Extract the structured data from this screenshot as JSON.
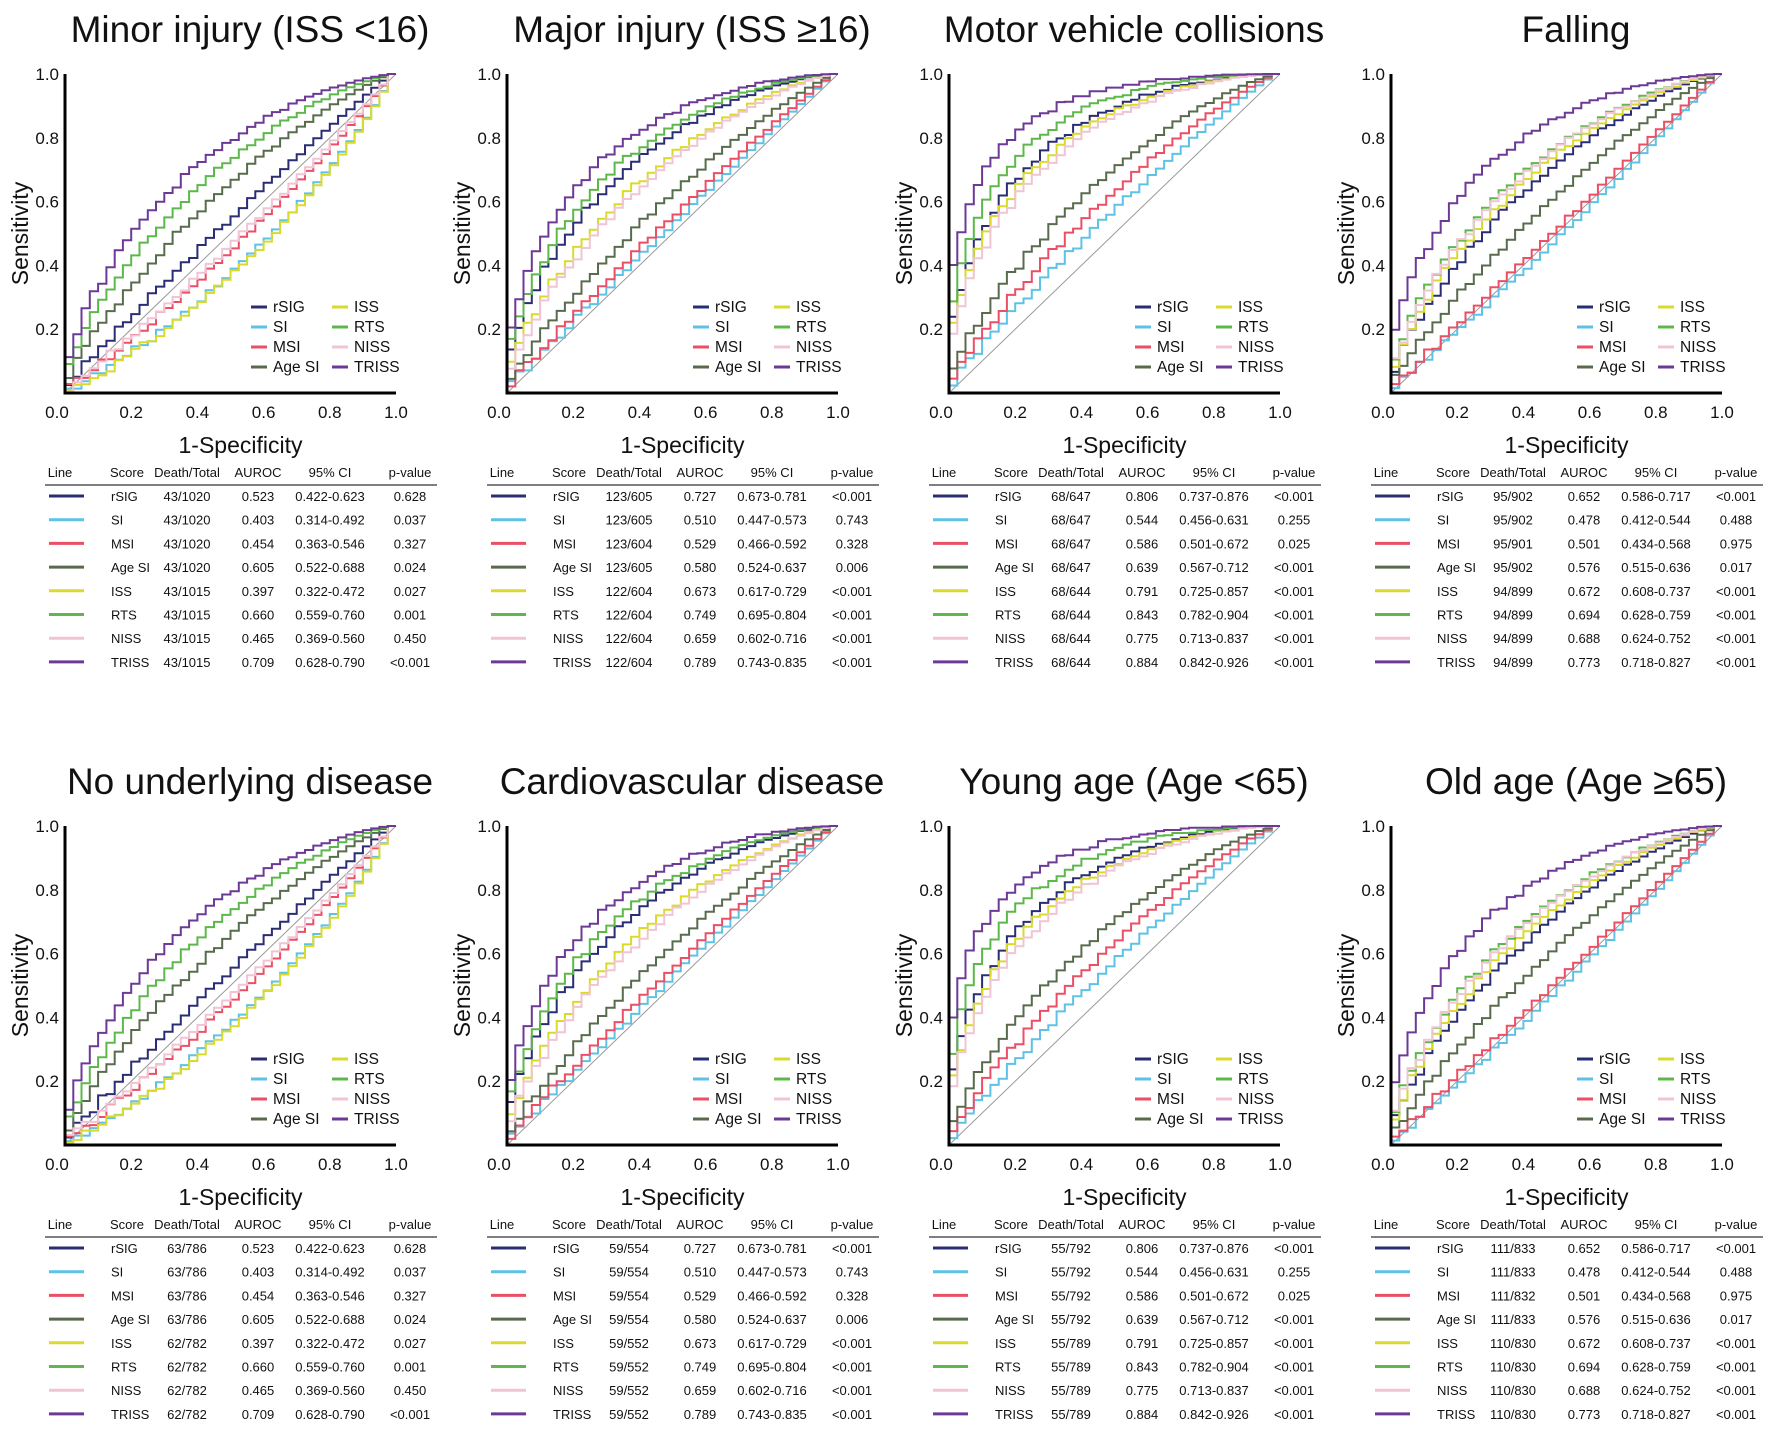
{
  "table_headers": [
    "Line",
    "Score",
    "Death/Total",
    "AUROC",
    "95% CI",
    "p-value"
  ],
  "colors": {
    "rSIG": "#2a2c74",
    "SI": "#5ec2e6",
    "MSI": "#ea4f66",
    "Age SI": "#586b4c",
    "ISS": "#d9da2c",
    "RTS": "#5cb84a",
    "NISS": "#f1c4d3",
    "TRISS": "#6c3a96"
  },
  "chart_data": [
    {
      "type": "line",
      "title": "Minor injury (ISS <16)",
      "xlabel": "1-Specificity",
      "ylabel": "Sensitivity",
      "xlim": [
        0,
        1
      ],
      "ylim": [
        0,
        1
      ],
      "ticks": [
        "0.0",
        "0.2",
        "0.4",
        "0.6",
        "0.8",
        "1.0"
      ],
      "legend": "bottom-right",
      "series": [
        {
          "name": "rSIG",
          "death_total": "43/1020",
          "auroc": "0.523",
          "ci": "0.422-0.623",
          "p": "0.628"
        },
        {
          "name": "SI",
          "death_total": "43/1020",
          "auroc": "0.403",
          "ci": "0.314-0.492",
          "p": "0.037"
        },
        {
          "name": "MSI",
          "death_total": "43/1020",
          "auroc": "0.454",
          "ci": "0.363-0.546",
          "p": "0.327"
        },
        {
          "name": "Age SI",
          "death_total": "43/1020",
          "auroc": "0.605",
          "ci": "0.522-0.688",
          "p": "0.024"
        },
        {
          "name": "ISS",
          "death_total": "43/1015",
          "auroc": "0.397",
          "ci": "0.322-0.472",
          "p": "0.027"
        },
        {
          "name": "RTS",
          "death_total": "43/1015",
          "auroc": "0.660",
          "ci": "0.559-0.760",
          "p": "0.001"
        },
        {
          "name": "NISS",
          "death_total": "43/1015",
          "auroc": "0.465",
          "ci": "0.369-0.560",
          "p": "0.450"
        },
        {
          "name": "TRISS",
          "death_total": "43/1015",
          "auroc": "0.709",
          "ci": "0.628-0.790",
          "p": "<0.001"
        }
      ]
    },
    {
      "type": "line",
      "title": "Major injury (ISS ≥16)",
      "xlabel": "1-Specificity",
      "ylabel": "Sensitivity",
      "xlim": [
        0,
        1
      ],
      "ylim": [
        0,
        1
      ],
      "ticks": [
        "0.0",
        "0.2",
        "0.4",
        "0.6",
        "0.8",
        "1.0"
      ],
      "legend": "bottom-right",
      "series": [
        {
          "name": "rSIG",
          "death_total": "123/605",
          "auroc": "0.727",
          "ci": "0.673-0.781",
          "p": "<0.001"
        },
        {
          "name": "SI",
          "death_total": "123/605",
          "auroc": "0.510",
          "ci": "0.447-0.573",
          "p": "0.743"
        },
        {
          "name": "MSI",
          "death_total": "123/604",
          "auroc": "0.529",
          "ci": "0.466-0.592",
          "p": "0.328"
        },
        {
          "name": "Age SI",
          "death_total": "123/605",
          "auroc": "0.580",
          "ci": "0.524-0.637",
          "p": "0.006"
        },
        {
          "name": "ISS",
          "death_total": "122/604",
          "auroc": "0.673",
          "ci": "0.617-0.729",
          "p": "<0.001"
        },
        {
          "name": "RTS",
          "death_total": "122/604",
          "auroc": "0.749",
          "ci": "0.695-0.804",
          "p": "<0.001"
        },
        {
          "name": "NISS",
          "death_total": "122/604",
          "auroc": "0.659",
          "ci": "0.602-0.716",
          "p": "<0.001"
        },
        {
          "name": "TRISS",
          "death_total": "122/604",
          "auroc": "0.789",
          "ci": "0.743-0.835",
          "p": "<0.001"
        }
      ]
    },
    {
      "type": "line",
      "title": "Motor vehicle collisions",
      "xlabel": "1-Specificity",
      "ylabel": "Sensitivity",
      "xlim": [
        0,
        1
      ],
      "ylim": [
        0,
        1
      ],
      "ticks": [
        "0.0",
        "0.2",
        "0.4",
        "0.6",
        "0.8",
        "1.0"
      ],
      "legend": "bottom-right",
      "series": [
        {
          "name": "rSIG",
          "death_total": "68/647",
          "auroc": "0.806",
          "ci": "0.737-0.876",
          "p": "<0.001"
        },
        {
          "name": "SI",
          "death_total": "68/647",
          "auroc": "0.544",
          "ci": "0.456-0.631",
          "p": "0.255"
        },
        {
          "name": "MSI",
          "death_total": "68/647",
          "auroc": "0.586",
          "ci": "0.501-0.672",
          "p": "0.025"
        },
        {
          "name": "Age SI",
          "death_total": "68/647",
          "auroc": "0.639",
          "ci": "0.567-0.712",
          "p": "<0.001"
        },
        {
          "name": "ISS",
          "death_total": "68/644",
          "auroc": "0.791",
          "ci": "0.725-0.857",
          "p": "<0.001"
        },
        {
          "name": "RTS",
          "death_total": "68/644",
          "auroc": "0.843",
          "ci": "0.782-0.904",
          "p": "<0.001"
        },
        {
          "name": "NISS",
          "death_total": "68/644",
          "auroc": "0.775",
          "ci": "0.713-0.837",
          "p": "<0.001"
        },
        {
          "name": "TRISS",
          "death_total": "68/644",
          "auroc": "0.884",
          "ci": "0.842-0.926",
          "p": "<0.001"
        }
      ]
    },
    {
      "type": "line",
      "title": "Falling",
      "xlabel": "1-Specificity",
      "ylabel": "Sensitivity",
      "xlim": [
        0,
        1
      ],
      "ylim": [
        0,
        1
      ],
      "ticks": [
        "0.0",
        "0.2",
        "0.4",
        "0.6",
        "0.8",
        "1.0"
      ],
      "legend": "bottom-right",
      "series": [
        {
          "name": "rSIG",
          "death_total": "95/902",
          "auroc": "0.652",
          "ci": "0.586-0.717",
          "p": "<0.001"
        },
        {
          "name": "SI",
          "death_total": "95/902",
          "auroc": "0.478",
          "ci": "0.412-0.544",
          "p": "0.488"
        },
        {
          "name": "MSI",
          "death_total": "95/901",
          "auroc": "0.501",
          "ci": "0.434-0.568",
          "p": "0.975"
        },
        {
          "name": "Age SI",
          "death_total": "95/902",
          "auroc": "0.576",
          "ci": "0.515-0.636",
          "p": "0.017"
        },
        {
          "name": "ISS",
          "death_total": "94/899",
          "auroc": "0.672",
          "ci": "0.608-0.737",
          "p": "<0.001"
        },
        {
          "name": "RTS",
          "death_total": "94/899",
          "auroc": "0.694",
          "ci": "0.628-0.759",
          "p": "<0.001"
        },
        {
          "name": "NISS",
          "death_total": "94/899",
          "auroc": "0.688",
          "ci": "0.624-0.752",
          "p": "<0.001"
        },
        {
          "name": "TRISS",
          "death_total": "94/899",
          "auroc": "0.773",
          "ci": "0.718-0.827",
          "p": "<0.001"
        }
      ]
    },
    {
      "type": "line",
      "title": "No underlying disease",
      "xlabel": "1-Specificity",
      "ylabel": "Sensitivity",
      "xlim": [
        0,
        1
      ],
      "ylim": [
        0,
        1
      ],
      "ticks": [
        "0.0",
        "0.2",
        "0.4",
        "0.6",
        "0.8",
        "1.0"
      ],
      "legend": "bottom-right",
      "series": [
        {
          "name": "rSIG",
          "death_total": "63/786",
          "auroc": "0.523",
          "ci": "0.422-0.623",
          "p": "0.628"
        },
        {
          "name": "SI",
          "death_total": "63/786",
          "auroc": "0.403",
          "ci": "0.314-0.492",
          "p": "0.037"
        },
        {
          "name": "MSI",
          "death_total": "63/786",
          "auroc": "0.454",
          "ci": "0.363-0.546",
          "p": "0.327"
        },
        {
          "name": "Age SI",
          "death_total": "63/786",
          "auroc": "0.605",
          "ci": "0.522-0.688",
          "p": "0.024"
        },
        {
          "name": "ISS",
          "death_total": "62/782",
          "auroc": "0.397",
          "ci": "0.322-0.472",
          "p": "0.027"
        },
        {
          "name": "RTS",
          "death_total": "62/782",
          "auroc": "0.660",
          "ci": "0.559-0.760",
          "p": "0.001"
        },
        {
          "name": "NISS",
          "death_total": "62/782",
          "auroc": "0.465",
          "ci": "0.369-0.560",
          "p": "0.450"
        },
        {
          "name": "TRISS",
          "death_total": "62/782",
          "auroc": "0.709",
          "ci": "0.628-0.790",
          "p": "<0.001"
        }
      ]
    },
    {
      "type": "line",
      "title": "Cardiovascular disease",
      "xlabel": "1-Specificity",
      "ylabel": "Sensitivity",
      "xlim": [
        0,
        1
      ],
      "ylim": [
        0,
        1
      ],
      "ticks": [
        "0.0",
        "0.2",
        "0.4",
        "0.6",
        "0.8",
        "1.0"
      ],
      "legend": "bottom-right",
      "series": [
        {
          "name": "rSIG",
          "death_total": "59/554",
          "auroc": "0.727",
          "ci": "0.673-0.781",
          "p": "<0.001"
        },
        {
          "name": "SI",
          "death_total": "59/554",
          "auroc": "0.510",
          "ci": "0.447-0.573",
          "p": "0.743"
        },
        {
          "name": "MSI",
          "death_total": "59/554",
          "auroc": "0.529",
          "ci": "0.466-0.592",
          "p": "0.328"
        },
        {
          "name": "Age SI",
          "death_total": "59/554",
          "auroc": "0.580",
          "ci": "0.524-0.637",
          "p": "0.006"
        },
        {
          "name": "ISS",
          "death_total": "59/552",
          "auroc": "0.673",
          "ci": "0.617-0.729",
          "p": "<0.001"
        },
        {
          "name": "RTS",
          "death_total": "59/552",
          "auroc": "0.749",
          "ci": "0.695-0.804",
          "p": "<0.001"
        },
        {
          "name": "NISS",
          "death_total": "59/552",
          "auroc": "0.659",
          "ci": "0.602-0.716",
          "p": "<0.001"
        },
        {
          "name": "TRISS",
          "death_total": "59/552",
          "auroc": "0.789",
          "ci": "0.743-0.835",
          "p": "<0.001"
        }
      ]
    },
    {
      "type": "line",
      "title": "Young age (Age <65)",
      "xlabel": "1-Specificity",
      "ylabel": "Sensitivity",
      "xlim": [
        0,
        1
      ],
      "ylim": [
        0,
        1
      ],
      "ticks": [
        "0.0",
        "0.2",
        "0.4",
        "0.6",
        "0.8",
        "1.0"
      ],
      "legend": "bottom-right",
      "series": [
        {
          "name": "rSIG",
          "death_total": "55/792",
          "auroc": "0.806",
          "ci": "0.737-0.876",
          "p": "<0.001"
        },
        {
          "name": "SI",
          "death_total": "55/792",
          "auroc": "0.544",
          "ci": "0.456-0.631",
          "p": "0.255"
        },
        {
          "name": "MSI",
          "death_total": "55/792",
          "auroc": "0.586",
          "ci": "0.501-0.672",
          "p": "0.025"
        },
        {
          "name": "Age SI",
          "death_total": "55/792",
          "auroc": "0.639",
          "ci": "0.567-0.712",
          "p": "<0.001"
        },
        {
          "name": "ISS",
          "death_total": "55/789",
          "auroc": "0.791",
          "ci": "0.725-0.857",
          "p": "<0.001"
        },
        {
          "name": "RTS",
          "death_total": "55/789",
          "auroc": "0.843",
          "ci": "0.782-0.904",
          "p": "<0.001"
        },
        {
          "name": "NISS",
          "death_total": "55/789",
          "auroc": "0.775",
          "ci": "0.713-0.837",
          "p": "<0.001"
        },
        {
          "name": "TRISS",
          "death_total": "55/789",
          "auroc": "0.884",
          "ci": "0.842-0.926",
          "p": "<0.001"
        }
      ]
    },
    {
      "type": "line",
      "title": "Old age (Age ≥65)",
      "xlabel": "1-Specificity",
      "ylabel": "Sensitivity",
      "xlim": [
        0,
        1
      ],
      "ylim": [
        0,
        1
      ],
      "ticks": [
        "0.0",
        "0.2",
        "0.4",
        "0.6",
        "0.8",
        "1.0"
      ],
      "legend": "bottom-right",
      "series": [
        {
          "name": "rSIG",
          "death_total": "111/833",
          "auroc": "0.652",
          "ci": "0.586-0.717",
          "p": "<0.001"
        },
        {
          "name": "SI",
          "death_total": "111/833",
          "auroc": "0.478",
          "ci": "0.412-0.544",
          "p": "0.488"
        },
        {
          "name": "MSI",
          "death_total": "111/832",
          "auroc": "0.501",
          "ci": "0.434-0.568",
          "p": "0.975"
        },
        {
          "name": "Age SI",
          "death_total": "111/833",
          "auroc": "0.576",
          "ci": "0.515-0.636",
          "p": "0.017"
        },
        {
          "name": "ISS",
          "death_total": "110/830",
          "auroc": "0.672",
          "ci": "0.608-0.737",
          "p": "<0.001"
        },
        {
          "name": "RTS",
          "death_total": "110/830",
          "auroc": "0.694",
          "ci": "0.628-0.759",
          "p": "<0.001"
        },
        {
          "name": "NISS",
          "death_total": "110/830",
          "auroc": "0.688",
          "ci": "0.624-0.752",
          "p": "<0.001"
        },
        {
          "name": "TRISS",
          "death_total": "110/830",
          "auroc": "0.773",
          "ci": "0.718-0.827",
          "p": "<0.001"
        }
      ]
    }
  ]
}
